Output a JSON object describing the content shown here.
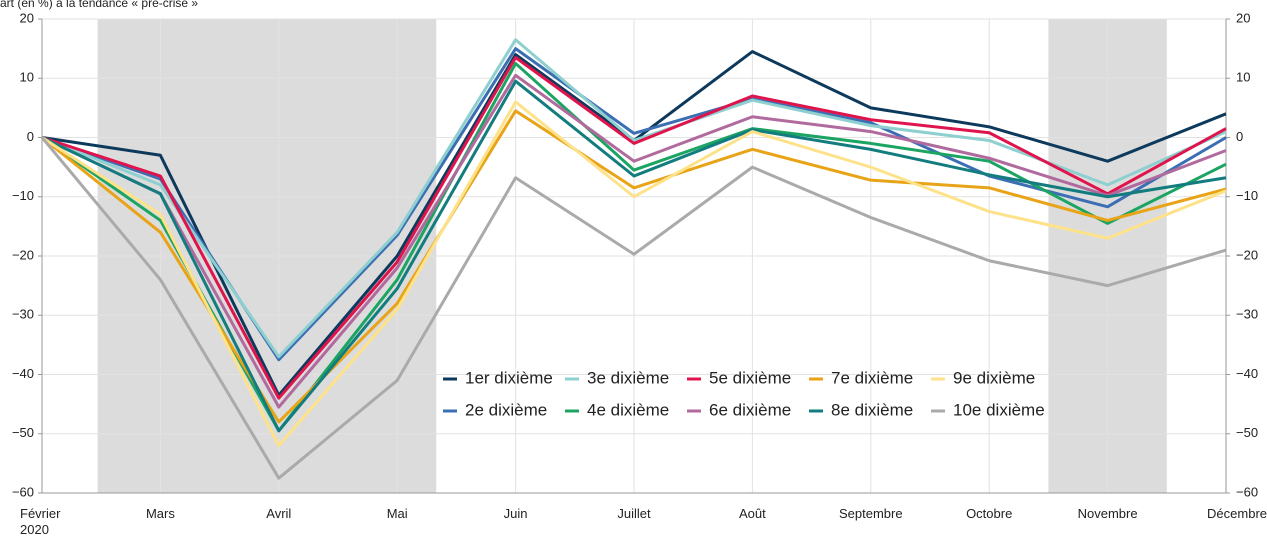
{
  "chart_data": {
    "type": "line",
    "title": "Écart (en %) à la tendance « pré-crise »",
    "categories": [
      "Février 2020",
      "Mars",
      "Avril",
      "Mai",
      "Juin",
      "Juillet",
      "Août",
      "Septembre",
      "Octobre",
      "Novembre",
      "Décembre"
    ],
    "ylim": [
      -60,
      20
    ],
    "yticks": [
      {
        "value": -60,
        "label": "−60"
      },
      {
        "value": -50,
        "label": "−50"
      },
      {
        "value": -40,
        "label": "−40"
      },
      {
        "value": -30,
        "label": "−30"
      },
      {
        "value": -20,
        "label": "−20"
      },
      {
        "value": -10,
        "label": "−10"
      },
      0,
      10,
      20
    ],
    "grid": true,
    "series": [
      {
        "name": "1er dixième",
        "color": "#0d3a5c",
        "values": [
          0,
          -3,
          -43.5,
          -20,
          14,
          -0.5,
          14.5,
          5,
          1.8,
          -4,
          4
        ]
      },
      {
        "name": "2e dixième",
        "color": "#3c6eb4",
        "values": [
          0,
          -7,
          -37.5,
          -16.5,
          15,
          0.7,
          6.5,
          2.5,
          -6.5,
          -11.7,
          0
        ]
      },
      {
        "name": "3e dixième",
        "color": "#8ecfd0",
        "values": [
          0,
          -8,
          -37,
          -16,
          16.5,
          -0.5,
          6.3,
          2,
          -0.5,
          -8,
          1
        ]
      },
      {
        "name": "4e dixième",
        "color": "#1ba462",
        "values": [
          0,
          -14,
          -49.5,
          -24,
          12.5,
          -5.5,
          1.5,
          -1,
          -4,
          -14.5,
          -4.5
        ]
      },
      {
        "name": "5e dixième",
        "color": "#e0144c",
        "values": [
          0,
          -6.5,
          -44,
          -21,
          13.5,
          -1,
          7,
          3,
          0.8,
          -9.5,
          1.5
        ]
      },
      {
        "name": "6e dixième",
        "color": "#b06a9e",
        "values": [
          0,
          -9.5,
          -45.5,
          -22,
          10.5,
          -4,
          3.5,
          1,
          -3.5,
          -9.8,
          -2.2
        ]
      },
      {
        "name": "7e dixième",
        "color": "#e8a317",
        "values": [
          0,
          -16,
          -48,
          -28,
          4.5,
          -8.5,
          -2,
          -7.2,
          -8.5,
          -14,
          -8.7
        ]
      },
      {
        "name": "8e dixième",
        "color": "#137c7e",
        "values": [
          0,
          -9.5,
          -49.5,
          -25.5,
          9.5,
          -6.5,
          1.3,
          -2,
          -6.3,
          -10,
          -6.8
        ]
      },
      {
        "name": "9e dixième",
        "color": "#fde28a",
        "values": [
          0,
          -13,
          -52,
          -29,
          6,
          -10,
          1,
          -5,
          -12.5,
          -17,
          -9
        ]
      },
      {
        "name": "10e dixième",
        "color": "#aaaaaa",
        "values": [
          0,
          -24,
          -57.5,
          -41,
          -6.8,
          -19.7,
          -5,
          -13.5,
          -20.8,
          -25,
          -19
        ]
      }
    ]
  }
}
